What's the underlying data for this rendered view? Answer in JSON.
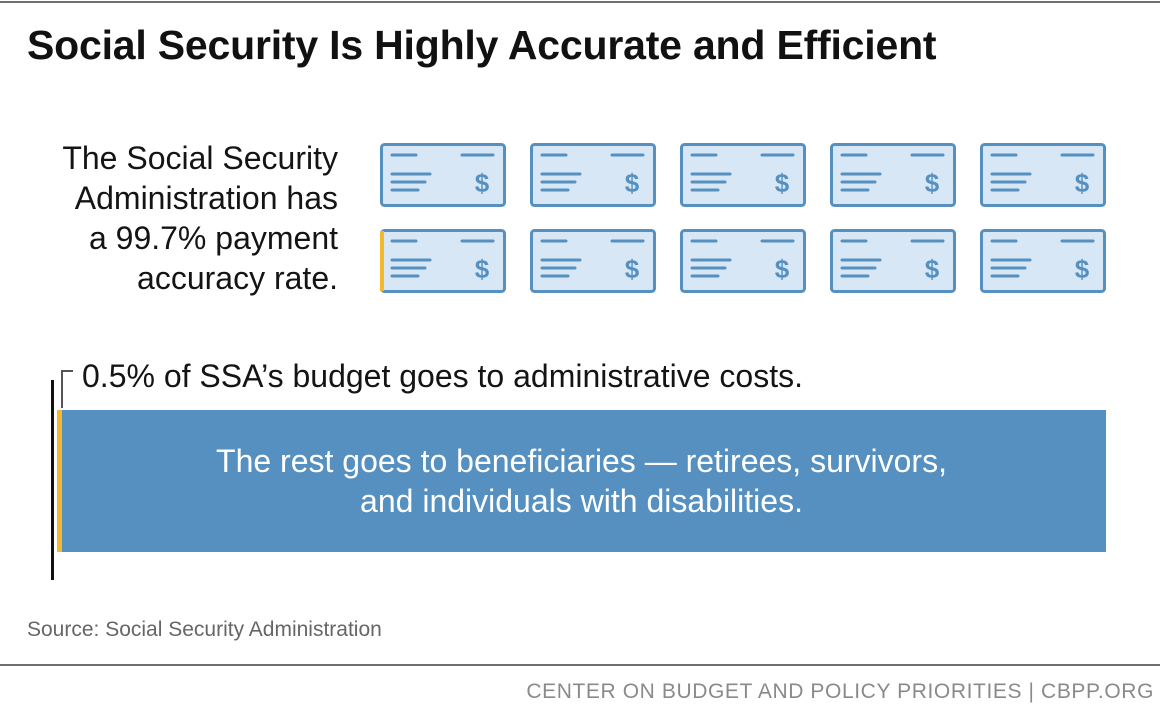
{
  "title": "Social Security Is Highly Accurate and Efficient",
  "accuracy": {
    "lines": [
      "The Social Security",
      "Administration has",
      "a 99.7% payment",
      "accuracy rate."
    ]
  },
  "colors": {
    "check_fill": "#d8e7f5",
    "check_stroke": "#5690c0",
    "accent": "#f2b92b",
    "bar": "#5690c0",
    "text": "#141414",
    "muted": "#666666"
  },
  "icons": {
    "check": "paycheck-icon"
  },
  "chart_data": [
    {
      "type": "pictogram",
      "icon": "paycheck",
      "units": 10,
      "highlighted_share": 0.003,
      "remaining_share": 0.997
    },
    {
      "type": "bar",
      "stacked": true,
      "segments": [
        {
          "value": 0.5,
          "label": "0.5% of SSA’s budget goes to administrative costs."
        },
        {
          "value": 99.5,
          "label": "The rest goes to beneficiaries — retirees, survivors, and individuals with disabilities."
        }
      ],
      "xlim": [
        0,
        100
      ]
    }
  ],
  "source": "Source: Social Security Administration",
  "footer": "CENTER ON BUDGET AND POLICY PRIORITIES | CBPP.ORG"
}
